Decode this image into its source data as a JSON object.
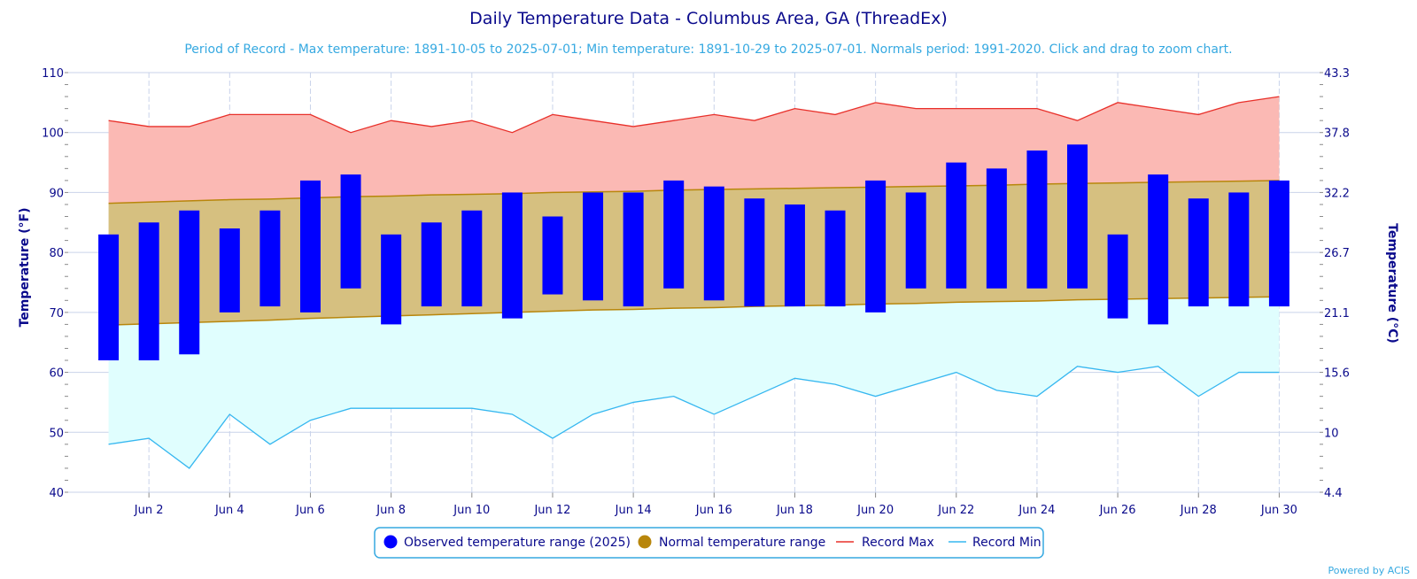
{
  "chart_data": {
    "type": "bar",
    "title": "Daily Temperature Data - Columbus Area, GA (ThreadEx)",
    "subtitle": "Period of Record - Max temperature: 1891-10-05 to 2025-07-01; Min temperature: 1891-10-29 to 2025-07-01. Normals period: 1991-2020. Click and drag to zoom chart.",
    "ylabel": "Temperature (°F)",
    "y2label": "Temperature (°C)",
    "ylim": [
      40,
      110
    ],
    "y_ticks": [
      "40",
      "50",
      "60",
      "70",
      "80",
      "90",
      "100",
      "110"
    ],
    "y2_ticks": [
      "4.4",
      "10",
      "15.6",
      "21.1",
      "26.7",
      "32.2",
      "37.8",
      "43.3"
    ],
    "x_tick_labels": [
      "Jun 2",
      "Jun 4",
      "Jun 6",
      "Jun 8",
      "Jun 10",
      "Jun 12",
      "Jun 14",
      "Jun 16",
      "Jun 18",
      "Jun 20",
      "Jun 22",
      "Jun 24",
      "Jun 26",
      "Jun 28",
      "Jun 30"
    ],
    "x_tick_days": [
      2,
      4,
      6,
      8,
      10,
      12,
      14,
      16,
      18,
      20,
      22,
      24,
      26,
      28,
      30
    ],
    "days": [
      1,
      2,
      3,
      4,
      5,
      6,
      7,
      8,
      9,
      10,
      11,
      12,
      13,
      14,
      15,
      16,
      17,
      18,
      19,
      20,
      21,
      22,
      23,
      24,
      25,
      26,
      27,
      28,
      29,
      30
    ],
    "series": [
      {
        "name": "Observed temperature range (2025)",
        "low": [
          62,
          62,
          63,
          70,
          71,
          70,
          74,
          68,
          71,
          71,
          69,
          73,
          72,
          71,
          74,
          72,
          71,
          71,
          71,
          70,
          74,
          74,
          74,
          74,
          74,
          69,
          68,
          71,
          71,
          71
        ],
        "high": [
          83,
          85,
          87,
          84,
          87,
          92,
          93,
          83,
          85,
          87,
          90,
          86,
          90,
          90,
          92,
          91,
          89,
          88,
          87,
          92,
          90,
          95,
          94,
          97,
          98,
          83,
          93,
          89,
          90,
          92
        ]
      },
      {
        "name": "Normal temperature range",
        "low": [
          67.9,
          68.1,
          68.3,
          68.5,
          68.7,
          69.0,
          69.2,
          69.4,
          69.6,
          69.8,
          70.0,
          70.2,
          70.4,
          70.5,
          70.7,
          70.8,
          71.0,
          71.1,
          71.2,
          71.4,
          71.5,
          71.7,
          71.8,
          71.9,
          72.1,
          72.2,
          72.3,
          72.4,
          72.5,
          72.6
        ],
        "high": [
          88.2,
          88.4,
          88.6,
          88.8,
          88.9,
          89.1,
          89.3,
          89.4,
          89.6,
          89.7,
          89.8,
          90.0,
          90.1,
          90.2,
          90.4,
          90.5,
          90.6,
          90.7,
          90.8,
          90.9,
          91.0,
          91.1,
          91.2,
          91.4,
          91.5,
          91.6,
          91.7,
          91.8,
          91.9,
          92.0
        ]
      },
      {
        "name": "Record Max",
        "values": [
          102,
          101,
          101,
          103,
          103,
          103,
          100,
          102,
          101,
          102,
          100,
          103,
          102,
          101,
          102,
          103,
          102,
          104,
          103,
          105,
          104,
          104,
          104,
          104,
          102,
          105,
          104,
          103,
          105,
          106
        ]
      },
      {
        "name": "Record Min",
        "values": [
          48,
          49,
          44,
          53,
          48,
          52,
          54,
          54,
          54,
          54,
          53,
          49,
          53,
          55,
          56,
          53,
          56,
          59,
          58,
          56,
          58,
          60,
          57,
          56,
          61,
          60,
          61,
          56,
          60,
          60
        ]
      }
    ],
    "colors": {
      "observed": "#0000ff",
      "normal_fill": "#d6c080",
      "normal_marker": "#b8860b",
      "record_max_line": "#e8302a",
      "record_max_fill": "#fbb9b4",
      "record_min_line": "#36b7f0",
      "record_min_fill": "#e0fefe",
      "grid": "#c9d3ea",
      "axis_text": "#0a0a8c"
    },
    "grid": true,
    "legend_position": "bottom-center",
    "credit": "Powered by ACIS"
  }
}
